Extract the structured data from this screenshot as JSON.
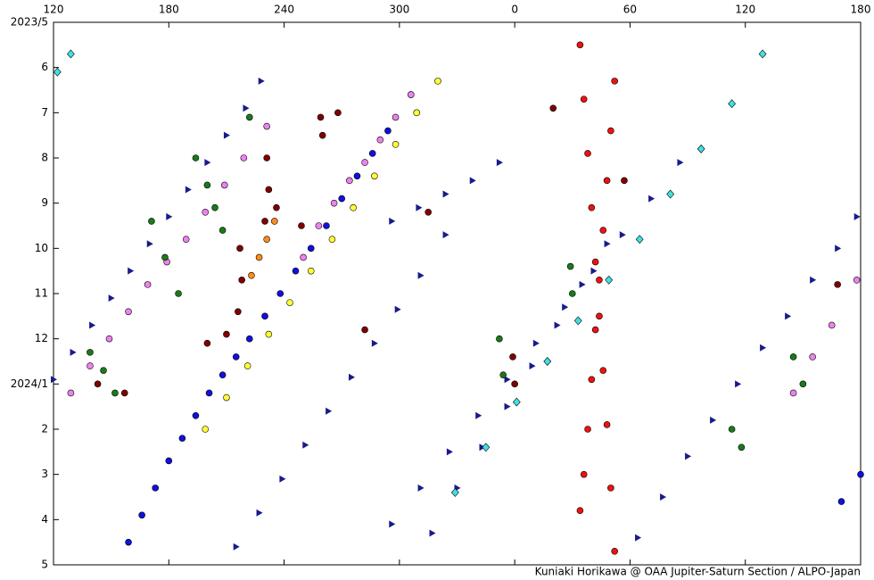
{
  "chart_data": {
    "type": "scatter",
    "credit": "Kuniaki Horikawa @ OAA Jupiter-Saturn Section / ALPO-Japan",
    "xlim": [
      120,
      540
    ],
    "xticks": [
      120,
      180,
      240,
      300,
      {
        "value": 360,
        "label": "0"
      },
      {
        "value": 420,
        "label": "60"
      },
      {
        "value": 480,
        "label": "120"
      },
      {
        "value": 540,
        "label": "180"
      }
    ],
    "ylim": [
      0,
      12
    ],
    "yticks": [
      {
        "value": 0,
        "label": "2023/5"
      },
      {
        "value": 1,
        "label": "6"
      },
      {
        "value": 2,
        "label": "7"
      },
      {
        "value": 3,
        "label": "8"
      },
      {
        "value": 4,
        "label": "9"
      },
      {
        "value": 5,
        "label": "10"
      },
      {
        "value": 6,
        "label": "11"
      },
      {
        "value": 7,
        "label": "12"
      },
      {
        "value": 8,
        "label": "2024/1"
      },
      {
        "value": 9,
        "label": "2"
      },
      {
        "value": 10,
        "label": "3"
      },
      {
        "value": 11,
        "label": "4"
      },
      {
        "value": 12,
        "label": "5"
      }
    ],
    "y_reversed": true,
    "series": [
      {
        "color": "#1a1a8c",
        "marker": "triangle",
        "x": [
          120,
          130,
          140,
          150,
          160,
          170,
          180,
          190,
          200,
          210,
          220,
          228,
          215,
          227,
          239,
          251,
          263,
          275,
          287,
          299,
          311,
          324,
          296,
          311,
          326,
          341,
          356,
          371,
          386,
          401,
          416,
          431,
          446,
          317,
          330,
          343,
          356,
          369,
          382,
          395,
          408,
          424,
          437,
          450,
          463,
          476,
          489,
          502,
          515,
          528,
          538,
          296,
          310,
          324,
          338,
          352
        ],
        "y": [
          7.9,
          7.3,
          6.7,
          6.1,
          5.5,
          4.9,
          4.3,
          3.7,
          3.1,
          2.5,
          1.9,
          1.3,
          11.6,
          10.85,
          10.1,
          9.35,
          8.6,
          7.85,
          7.1,
          6.35,
          5.6,
          4.7,
          11.1,
          10.3,
          9.5,
          8.7,
          7.9,
          7.1,
          6.3,
          5.5,
          4.7,
          3.9,
          3.1,
          11.3,
          10.3,
          9.4,
          8.5,
          7.6,
          6.7,
          5.8,
          4.9,
          11.4,
          10.5,
          9.6,
          8.8,
          8.0,
          7.2,
          6.5,
          5.7,
          5.0,
          4.3,
          4.4,
          4.1,
          3.8,
          3.5,
          3.1
        ]
      },
      {
        "color": "#1010e0",
        "marker": "circle",
        "x": [
          159,
          166,
          173,
          180,
          187,
          194,
          201,
          208,
          215,
          222,
          230,
          238,
          246,
          254,
          262,
          270,
          278,
          286,
          294,
          306,
          530,
          540
        ],
        "y": [
          11.5,
          10.9,
          10.3,
          9.7,
          9.2,
          8.7,
          8.2,
          7.8,
          7.4,
          7.0,
          6.5,
          6.0,
          5.5,
          5.0,
          4.5,
          3.9,
          3.4,
          2.9,
          2.4,
          1.6,
          10.6,
          10.0
        ]
      },
      {
        "color": "#ffff33",
        "marker": "circle",
        "x": [
          199,
          210,
          221,
          232,
          243,
          254,
          265,
          276,
          287,
          298,
          309,
          320
        ],
        "y": [
          9.0,
          8.3,
          7.6,
          6.9,
          6.2,
          5.5,
          4.8,
          4.1,
          3.4,
          2.7,
          2.0,
          1.3
        ]
      },
      {
        "color": "#ee82ee",
        "marker": "circle",
        "x": [
          129,
          139,
          149,
          159,
          169,
          179,
          189,
          199,
          209,
          219,
          231,
          250,
          258,
          266,
          274,
          282,
          290,
          298,
          306,
          505,
          515,
          525,
          538
        ],
        "y": [
          8.2,
          7.6,
          7.0,
          6.4,
          5.8,
          5.3,
          4.8,
          4.2,
          3.6,
          3.0,
          2.3,
          5.2,
          4.5,
          4.0,
          3.5,
          3.1,
          2.6,
          2.1,
          1.6,
          8.2,
          7.4,
          6.7,
          5.7
        ]
      },
      {
        "color": "#40e0e0",
        "marker": "diamond",
        "x": [
          329,
          345,
          361,
          377,
          393,
          409,
          425,
          441,
          457,
          473,
          489,
          122,
          129
        ],
        "y": [
          10.4,
          9.4,
          8.4,
          7.5,
          6.6,
          5.7,
          4.8,
          3.8,
          2.8,
          1.8,
          0.7,
          1.1,
          0.7
        ]
      },
      {
        "color": "#ee1111",
        "marker": "circle",
        "x": [
          394,
          396,
          398,
          400,
          402,
          404,
          406,
          408,
          410,
          412,
          412,
          410,
          408,
          406,
          404,
          402,
          400,
          398,
          396,
          394
        ],
        "y": [
          0.5,
          1.7,
          2.9,
          4.1,
          5.3,
          6.5,
          7.7,
          8.9,
          10.3,
          11.7,
          1.3,
          2.4,
          3.5,
          4.6,
          5.7,
          6.8,
          7.9,
          9.0,
          10.0,
          10.8
        ]
      },
      {
        "color": "#800000",
        "marker": "circle",
        "x": [
          231,
          232,
          230,
          259,
          260,
          268,
          217,
          218,
          216,
          200,
          210,
          143,
          157,
          315,
          282,
          359,
          360,
          380,
          417,
          528,
          236,
          249
        ],
        "y": [
          3.0,
          3.7,
          4.4,
          2.1,
          2.5,
          2.0,
          5.0,
          5.7,
          6.4,
          7.1,
          6.9,
          8.0,
          8.2,
          4.2,
          6.8,
          7.4,
          8.0,
          1.9,
          3.5,
          5.8,
          4.1,
          4.5
        ]
      },
      {
        "color": "#1a7a1a",
        "marker": "circle",
        "x": [
          194,
          200,
          204,
          208,
          171,
          178,
          185,
          139,
          146,
          152,
          389,
          390,
          352,
          354,
          505,
          510,
          473,
          478,
          222
        ],
        "y": [
          3.0,
          3.6,
          4.1,
          4.6,
          4.4,
          5.2,
          6.0,
          7.3,
          7.7,
          8.2,
          5.4,
          6.0,
          7.0,
          7.8,
          7.4,
          8.0,
          9.0,
          9.4,
          2.1
        ]
      },
      {
        "color": "#ff8c1a",
        "marker": "circle",
        "x": [
          223,
          227,
          231,
          235
        ],
        "y": [
          5.6,
          5.2,
          4.8,
          4.4
        ]
      }
    ]
  }
}
